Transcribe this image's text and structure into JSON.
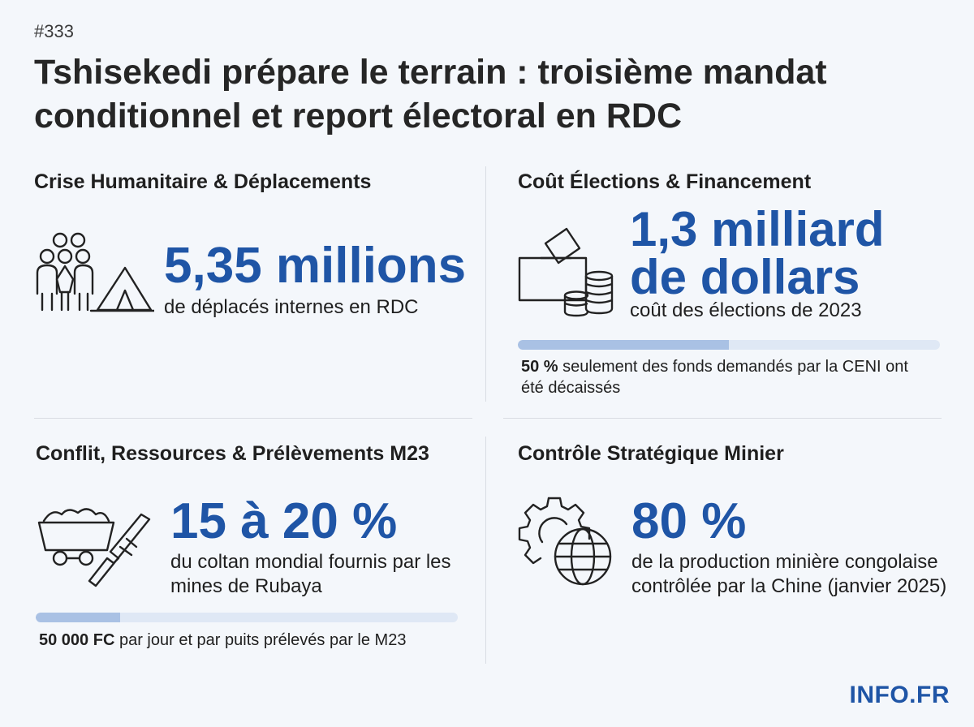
{
  "header": {
    "issue": "#333",
    "title": "Tshisekedi prépare le terrain : troisième mandat conditionnel et report électoral en RDC"
  },
  "sections": {
    "humanitarian": {
      "title": "Crise Humanitaire & Déplacements",
      "figure": "5,35 millions",
      "description": "de déplacés internes en RDC",
      "icon": "displaced-people-tent-icon"
    },
    "elections": {
      "title": "Coût Élections & Financement",
      "figure_line1": "1,3 milliard",
      "figure_line2": "de dollars",
      "description": "coût des élections de 2023",
      "note_bold": "50 %",
      "note_text": " seulement des fonds demandés par la CENI ont été décaissés",
      "progress_fraction": 0.5,
      "icon": "ballot-box-coins-icon"
    },
    "conflict": {
      "title": "Conflit, Ressources & Prélèvements M23",
      "figure": "15 à 20 %",
      "description": "du coltan mondial fournis par les mines de Rubaya",
      "note_bold": "50 000 FC",
      "note_text": " par jour et par puits prélevés par le M23",
      "progress_fraction": 0.2,
      "icon": "mine-cart-rifle-icon"
    },
    "mining": {
      "title": "Contrôle Stratégique Minier",
      "figure": "80 %",
      "description": "de la production minière congolaise contrôlée par la Chine (janvier 2025)",
      "icon": "gear-globe-icon"
    }
  },
  "brand": "INFO.FR",
  "colors": {
    "accent": "#1f55a6",
    "bar_fill": "#a9c1e4",
    "bar_track": "#dfe8f5"
  }
}
